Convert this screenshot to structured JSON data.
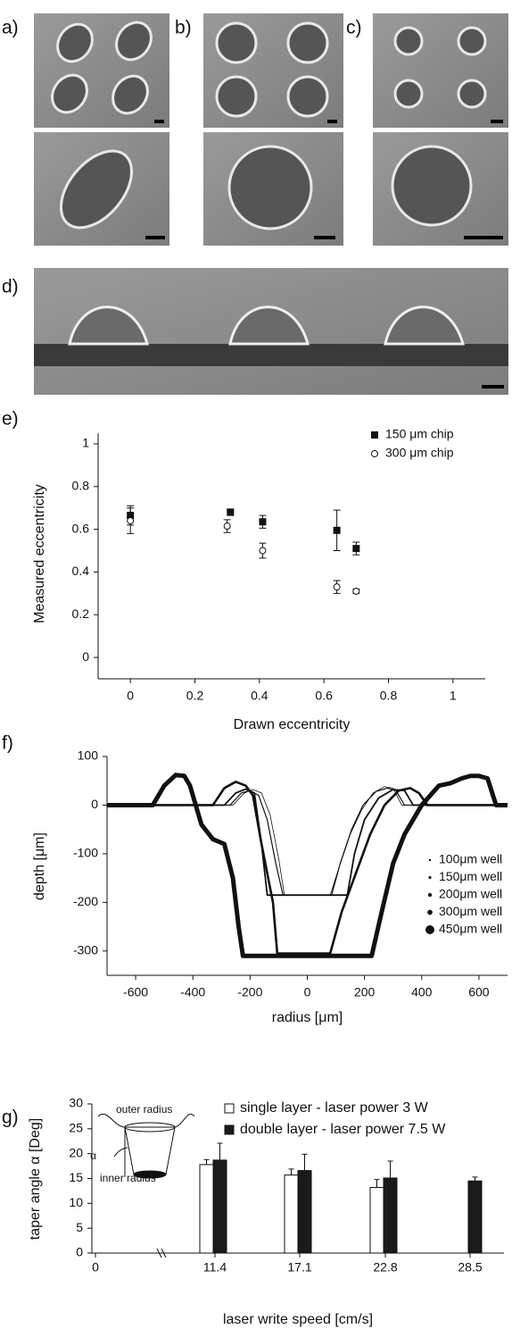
{
  "image_panels": [
    "a)",
    "b)",
    "c)",
    "d)"
  ],
  "chart_data": [
    {
      "type": "scatter",
      "panel_label": "e)",
      "x_label": "Drawn eccentricity",
      "y_label": "Measured eccentricity",
      "xlim": [
        -0.1,
        1.1
      ],
      "ylim": [
        -0.1,
        1.05
      ],
      "xticks": [
        0,
        0.2,
        0.4,
        0.6,
        0.8,
        1
      ],
      "yticks": [
        0,
        0.2,
        0.4,
        0.6,
        0.8,
        1
      ],
      "series": [
        {
          "name": "150 μm chip",
          "color": "#111111",
          "marker": "square",
          "filled": true,
          "x": [
            0,
            0.31,
            0.41,
            0.64,
            0.7
          ],
          "values": [
            0.665,
            0.68,
            0.635,
            0.595,
            0.51
          ],
          "errors": [
            0.045,
            0.015,
            0.03,
            0.095,
            0.03
          ]
        },
        {
          "name": "300 μm chip",
          "color": "#111111",
          "marker": "circle",
          "filled": false,
          "x": [
            0,
            0.3,
            0.41,
            0.64,
            0.7
          ],
          "values": [
            0.64,
            0.615,
            0.5,
            0.33,
            0.31
          ],
          "errors": [
            0.06,
            0.03,
            0.035,
            0.03,
            0.01
          ]
        }
      ]
    },
    {
      "type": "line",
      "panel_label": "f)",
      "x_label": "radius [μm]",
      "y_label": "depth [μm]",
      "xlim": [
        -700,
        700
      ],
      "ylim": [
        -350,
        100
      ],
      "xticks": [
        -600,
        -400,
        -200,
        0,
        200,
        400,
        600
      ],
      "yticks": [
        -300,
        -200,
        -100,
        0,
        100
      ],
      "series": [
        {
          "name": "100μm well",
          "color": "#111111",
          "width": 0.8,
          "x": [
            -700,
            -260,
            -220,
            -190,
            -160,
            -130,
            -100,
            -80,
            80,
            110,
            150,
            190,
            230,
            270,
            300,
            330,
            700
          ],
          "values": [
            0,
            0,
            25,
            32,
            25,
            -20,
            -110,
            -185,
            -185,
            -130,
            -60,
            -10,
            25,
            38,
            35,
            0,
            0
          ]
        },
        {
          "name": "150μm well",
          "color": "#111111",
          "width": 1.2,
          "x": [
            -700,
            -270,
            -230,
            -200,
            -170,
            -140,
            -110,
            -85,
            85,
            115,
            155,
            195,
            240,
            280,
            310,
            340,
            700
          ],
          "values": [
            0,
            0,
            25,
            30,
            20,
            -30,
            -120,
            -185,
            -185,
            -120,
            -50,
            0,
            28,
            35,
            30,
            0,
            0
          ]
        },
        {
          "name": "200μm well",
          "color": "#111111",
          "width": 1.8,
          "x": [
            -700,
            -290,
            -250,
            -215,
            -185,
            -160,
            -140,
            140,
            165,
            200,
            250,
            300,
            340,
            370,
            700
          ],
          "values": [
            0,
            0,
            25,
            33,
            25,
            -80,
            -185,
            -185,
            -100,
            -30,
            15,
            32,
            30,
            0,
            0
          ]
        },
        {
          "name": "300μm well",
          "color": "#111111",
          "width": 2.6,
          "x": [
            -700,
            -330,
            -290,
            -250,
            -215,
            -190,
            -160,
            -120,
            -105,
            80,
            120,
            170,
            220,
            270,
            320,
            360,
            390,
            420,
            700
          ],
          "values": [
            0,
            0,
            35,
            48,
            40,
            20,
            -80,
            -200,
            -305,
            -305,
            -220,
            -140,
            -60,
            0,
            30,
            35,
            25,
            0,
            0
          ]
        },
        {
          "name": "450μm well",
          "color": "#111111",
          "width": 5,
          "x": [
            -700,
            -540,
            -500,
            -460,
            -430,
            -410,
            -390,
            -370,
            -330,
            -290,
            -260,
            -240,
            -225,
            225,
            260,
            300,
            340,
            400,
            460,
            500,
            540,
            570,
            600,
            630,
            660,
            700
          ],
          "values": [
            0,
            0,
            40,
            62,
            60,
            40,
            0,
            -40,
            -70,
            -80,
            -150,
            -250,
            -310,
            -310,
            -220,
            -120,
            -60,
            0,
            40,
            45,
            55,
            60,
            60,
            55,
            0,
            0
          ]
        }
      ]
    },
    {
      "type": "bar",
      "panel_label": "g)",
      "x_label": "laser write speed [cm/s]",
      "y_label": "taper angle α [Deg]",
      "annotations": [
        "outer radius",
        "inner radius",
        "α"
      ],
      "categories": [
        "0",
        "11.4",
        "17.1",
        "22.8",
        "28.5"
      ],
      "ylim": [
        0,
        30
      ],
      "yticks": [
        0,
        5,
        10,
        15,
        20,
        25,
        30
      ],
      "series": [
        {
          "name": "single layer - laser power 3 W",
          "color": "#ffffff",
          "values": [
            null,
            17.8,
            15.7,
            13.2,
            null
          ],
          "errors": [
            null,
            1.0,
            1.2,
            1.6,
            null
          ]
        },
        {
          "name": "double layer - laser power 7.5 W",
          "color": "#1a1a1a",
          "values": [
            null,
            18.7,
            16.6,
            15.1,
            14.5
          ],
          "errors": [
            null,
            3.4,
            3.3,
            3.4,
            0.8
          ]
        }
      ]
    }
  ]
}
